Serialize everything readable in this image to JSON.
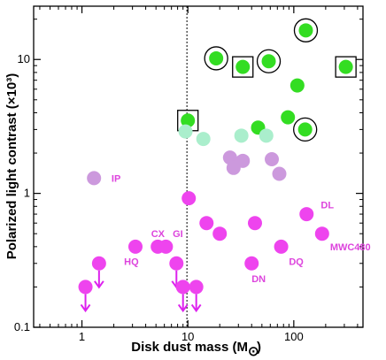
{
  "chart_data": {
    "type": "scatter",
    "xlabel": "Disk dust mass (M",
    "xlabel_sub": "⊙",
    "xlabel_tail": ")",
    "ylabel": "Polarized light contrast (×10³)",
    "xscale": "log",
    "yscale": "log",
    "xlim": [
      0.35,
      450
    ],
    "ylim": [
      0.1,
      25
    ],
    "xticks": [
      {
        "v": 1,
        "label": "1"
      },
      {
        "v": 10,
        "label": "10"
      },
      {
        "v": 100,
        "label": "100"
      }
    ],
    "yticks": [
      {
        "v": 0.1,
        "label": "0.1"
      },
      {
        "v": 1,
        "label": "1"
      },
      {
        "v": 10,
        "label": "10"
      }
    ],
    "reference_line_x": 9.8,
    "colors": {
      "bright_green": "#33dd22",
      "pale_green": "#aaeecc",
      "lavender": "#cc99dd",
      "magenta": "#ee44ee",
      "arrow": "#dd22ee",
      "label": "#dd44dd"
    },
    "series": [
      {
        "color_key": "bright_green",
        "points": [
          {
            "x": 10.0,
            "y": 3.5,
            "marker": "square"
          },
          {
            "x": 18.5,
            "y": 10.2,
            "marker": "circle"
          },
          {
            "x": 33.0,
            "y": 8.8,
            "marker": "square"
          },
          {
            "x": 58.0,
            "y": 9.7,
            "marker": "circle"
          },
          {
            "x": 130.0,
            "y": 16.5,
            "marker": "circle"
          },
          {
            "x": 310.0,
            "y": 8.8,
            "marker": "square"
          },
          {
            "x": 108.0,
            "y": 6.4
          },
          {
            "x": 88.0,
            "y": 3.7
          },
          {
            "x": 46.0,
            "y": 3.1
          },
          {
            "x": 128.0,
            "y": 3.0,
            "marker": "circle"
          }
        ]
      },
      {
        "color_key": "pale_green",
        "points": [
          {
            "x": 9.5,
            "y": 2.9
          },
          {
            "x": 14.0,
            "y": 2.55
          },
          {
            "x": 32.0,
            "y": 2.7
          },
          {
            "x": 55.0,
            "y": 2.7
          }
        ]
      },
      {
        "color_key": "lavender",
        "points": [
          {
            "x": 1.3,
            "y": 1.3
          },
          {
            "x": 25.0,
            "y": 1.85
          },
          {
            "x": 27.0,
            "y": 1.55
          },
          {
            "x": 33.0,
            "y": 1.75
          },
          {
            "x": 62.0,
            "y": 1.8
          },
          {
            "x": 73.0,
            "y": 1.4
          }
        ]
      },
      {
        "color_key": "magenta",
        "points": [
          {
            "x": 10.2,
            "y": 0.92
          },
          {
            "x": 3.2,
            "y": 0.4
          },
          {
            "x": 5.2,
            "y": 0.4
          },
          {
            "x": 6.2,
            "y": 0.4
          },
          {
            "x": 15.0,
            "y": 0.6
          },
          {
            "x": 20.0,
            "y": 0.5
          },
          {
            "x": 43.0,
            "y": 0.6
          },
          {
            "x": 76.0,
            "y": 0.4
          },
          {
            "x": 132.0,
            "y": 0.7
          },
          {
            "x": 185.0,
            "y": 0.5
          },
          {
            "x": 40.0,
            "y": 0.3
          }
        ]
      },
      {
        "color_key": "magenta",
        "upper_limit": true,
        "points": [
          {
            "x": 1.08,
            "y": 0.2
          },
          {
            "x": 1.45,
            "y": 0.3
          },
          {
            "x": 7.8,
            "y": 0.3
          },
          {
            "x": 9.0,
            "y": 0.2
          },
          {
            "x": 12.0,
            "y": 0.2
          }
        ]
      }
    ],
    "annotations": [
      {
        "text": "IP",
        "x": 1.9,
        "y": 1.3
      },
      {
        "text": "CX",
        "x": 4.5,
        "y": 0.5
      },
      {
        "text": "GI",
        "x": 7.2,
        "y": 0.5
      },
      {
        "text": "HQ",
        "x": 2.5,
        "y": 0.31
      },
      {
        "text": "DL",
        "x": 180.0,
        "y": 0.82
      },
      {
        "text": "MWC480",
        "x": 220.0,
        "y": 0.4
      },
      {
        "text": "DQ",
        "x": 90.0,
        "y": 0.31
      },
      {
        "text": "DN",
        "x": 40.0,
        "y": 0.23
      }
    ]
  }
}
